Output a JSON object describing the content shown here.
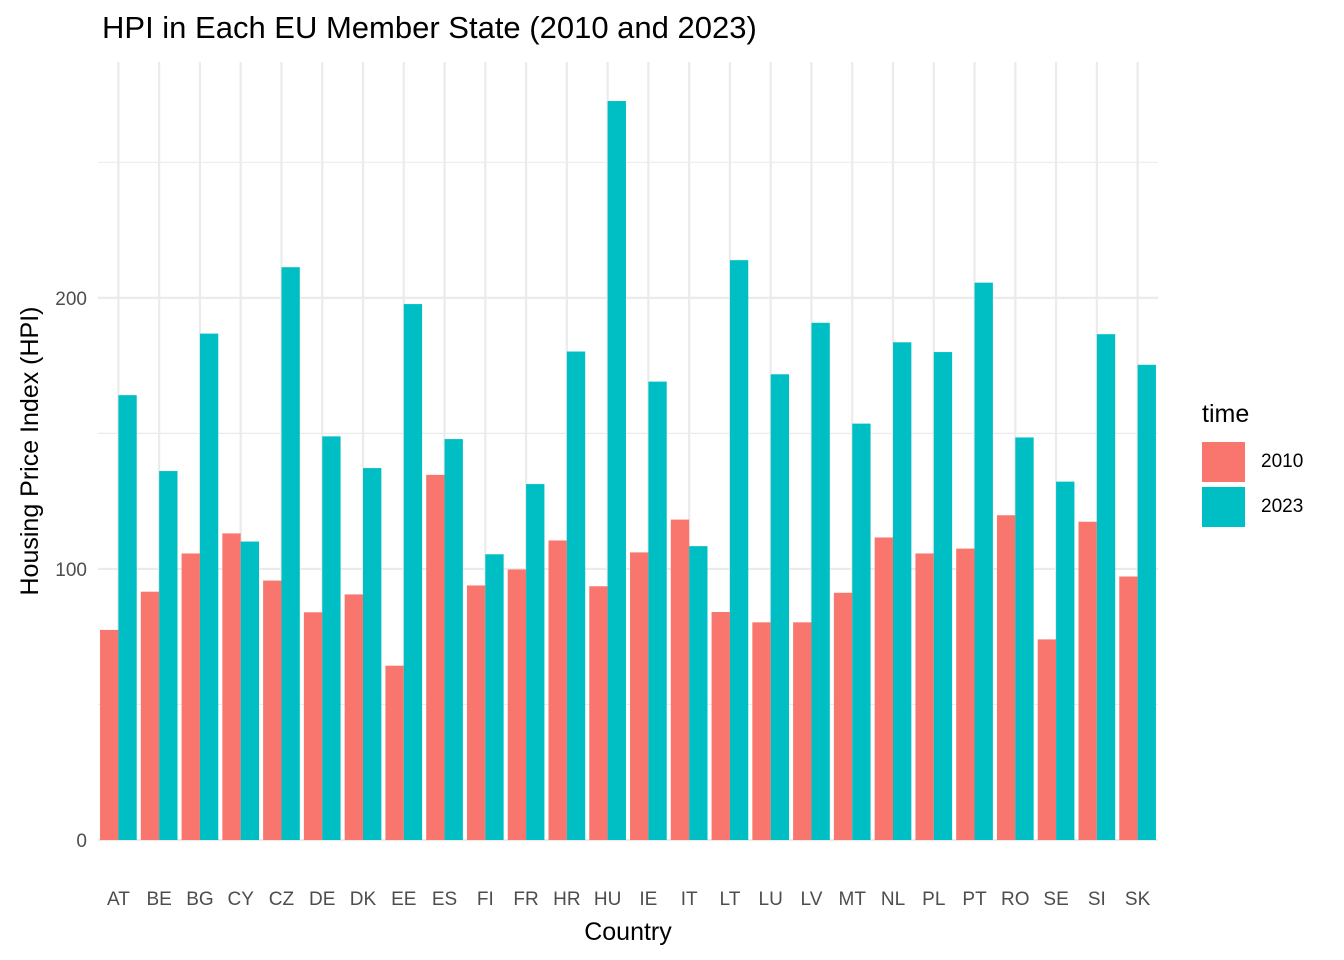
{
  "chart_data": {
    "type": "bar",
    "title": "HPI in Each EU Member State (2010 and 2023)",
    "xlabel": "Country",
    "ylabel": "Housing Price Index (HPI)",
    "ylim": [
      0,
      287
    ],
    "yticks": [
      0,
      100,
      200
    ],
    "grid": true,
    "legend_title": "time",
    "legend_position": "right",
    "categories": [
      "AT",
      "BE",
      "BG",
      "CY",
      "CZ",
      "DE",
      "DK",
      "EE",
      "ES",
      "FI",
      "FR",
      "HR",
      "HU",
      "IE",
      "IT",
      "LT",
      "LU",
      "LV",
      "MT",
      "NL",
      "PL",
      "PT",
      "RO",
      "SE",
      "SI",
      "SK"
    ],
    "series": [
      {
        "name": "2010",
        "color": "#F8766D",
        "values": [
          77.5,
          91.6,
          105.7,
          113.1,
          95.7,
          84,
          90.6,
          64.3,
          134.7,
          93.9,
          99.8,
          110.5,
          93.6,
          106.1,
          118.2,
          84.1,
          80.3,
          80.3,
          91.2,
          111.6,
          105.7,
          107.5,
          119.8,
          74,
          117.4,
          97.2
        ]
      },
      {
        "name": "2023",
        "color": "#00BFC4",
        "values": [
          164.1,
          136.1,
          186.8,
          110.1,
          211.3,
          148.9,
          137.2,
          197.7,
          147.9,
          105.4,
          131.3,
          180.2,
          272.6,
          169.1,
          108.4,
          213.9,
          171.8,
          190.8,
          153.6,
          183.6,
          180,
          205.6,
          148.5,
          132.2,
          186.6,
          175.3
        ]
      }
    ]
  }
}
